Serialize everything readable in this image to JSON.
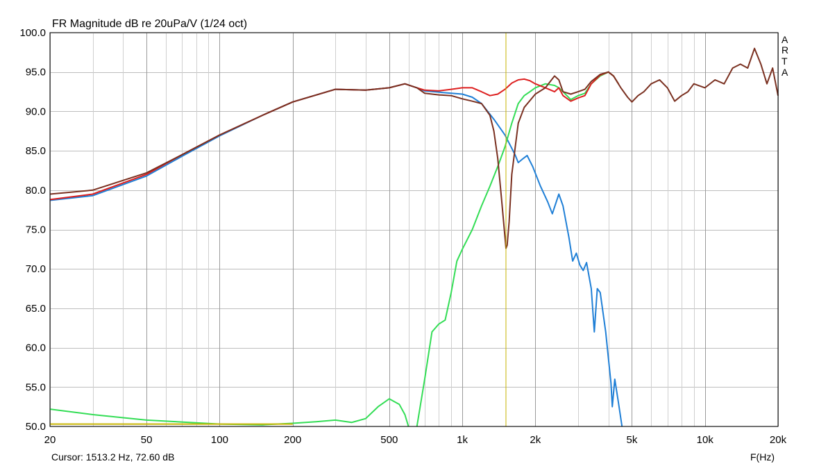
{
  "chart_data": {
    "type": "line",
    "title": "FR Magnitude dB re 20uPa/V (1/24 oct)",
    "watermark_letters": [
      "A",
      "R",
      "T",
      "A"
    ],
    "xlabel": "F(Hz)",
    "xscale": "log",
    "xlim": [
      20,
      20000
    ],
    "ylim": [
      50,
      100
    ],
    "grid": true,
    "y_ticks": [
      "100.0",
      "95.0",
      "90.0",
      "85.0",
      "80.0",
      "75.0",
      "70.0",
      "65.0",
      "60.0",
      "55.0",
      "50.0"
    ],
    "x_tick_labels": [
      {
        "f": 20,
        "label": "20"
      },
      {
        "f": 50,
        "label": "50"
      },
      {
        "f": 100,
        "label": "100"
      },
      {
        "f": 200,
        "label": "200"
      },
      {
        "f": 500,
        "label": "500"
      },
      {
        "f": 1000,
        "label": "1k"
      },
      {
        "f": 2000,
        "label": "2k"
      },
      {
        "f": 5000,
        "label": "5k"
      },
      {
        "f": 10000,
        "label": "10k"
      },
      {
        "f": 20000,
        "label": "20k"
      }
    ],
    "cursor": {
      "freq": 1513.2,
      "label": "Cursor: 1513.2 Hz, 72.60 dB",
      "color": "#c8b400"
    },
    "series": [
      {
        "color": "#1f7fd6",
        "points": [
          [
            20,
            78.7
          ],
          [
            30,
            79.3
          ],
          [
            50,
            81.8
          ],
          [
            70,
            84.3
          ],
          [
            100,
            86.9
          ],
          [
            150,
            89.5
          ],
          [
            200,
            91.2
          ],
          [
            300,
            92.8
          ],
          [
            400,
            92.7
          ],
          [
            500,
            93.0
          ],
          [
            580,
            93.5
          ],
          [
            650,
            93.0
          ],
          [
            700,
            92.6
          ],
          [
            900,
            92.3
          ],
          [
            1000,
            92.2
          ],
          [
            1100,
            91.8
          ],
          [
            1200,
            91.0
          ],
          [
            1350,
            89.0
          ],
          [
            1500,
            87.0
          ],
          [
            1650,
            84.5
          ],
          [
            1700,
            83.5
          ],
          [
            1780,
            84.0
          ],
          [
            1850,
            84.4
          ],
          [
            1950,
            83.0
          ],
          [
            2100,
            80.5
          ],
          [
            2250,
            78.5
          ],
          [
            2350,
            77.0
          ],
          [
            2500,
            79.5
          ],
          [
            2600,
            78.0
          ],
          [
            2750,
            74.0
          ],
          [
            2850,
            71.0
          ],
          [
            2950,
            72.0
          ],
          [
            3050,
            70.5
          ],
          [
            3150,
            69.8
          ],
          [
            3250,
            70.8
          ],
          [
            3400,
            67.5
          ],
          [
            3500,
            62.0
          ],
          [
            3600,
            67.5
          ],
          [
            3700,
            67.0
          ],
          [
            3900,
            62.0
          ],
          [
            4100,
            55.5
          ],
          [
            4150,
            52.5
          ],
          [
            4250,
            56.0
          ],
          [
            4400,
            53.0
          ],
          [
            4550,
            50.0
          ]
        ]
      },
      {
        "color": "#33dd55",
        "points": [
          [
            20,
            52.2
          ],
          [
            30,
            51.5
          ],
          [
            50,
            50.8
          ],
          [
            100,
            50.3
          ],
          [
            150,
            50.2
          ],
          [
            200,
            50.4
          ],
          [
            250,
            50.6
          ],
          [
            300,
            50.8
          ],
          [
            350,
            50.5
          ],
          [
            400,
            51.0
          ],
          [
            450,
            52.5
          ],
          [
            500,
            53.5
          ],
          [
            550,
            52.8
          ],
          [
            580,
            51.5
          ],
          [
            600,
            50.0
          ]
        ]
      },
      {
        "color": "#33dd55",
        "points": [
          [
            650,
            50.0
          ],
          [
            700,
            56.0
          ],
          [
            750,
            62.0
          ],
          [
            800,
            63.0
          ],
          [
            850,
            63.5
          ],
          [
            900,
            67.0
          ],
          [
            950,
            71.0
          ],
          [
            1000,
            72.5
          ],
          [
            1100,
            75.0
          ],
          [
            1200,
            78.0
          ],
          [
            1300,
            80.5
          ],
          [
            1400,
            83.0
          ],
          [
            1500,
            85.5
          ],
          [
            1600,
            88.5
          ],
          [
            1700,
            91.0
          ],
          [
            1800,
            92.0
          ],
          [
            1900,
            92.5
          ],
          [
            2000,
            93.0
          ],
          [
            2200,
            93.5
          ],
          [
            2400,
            93.3
          ],
          [
            2500,
            93.0
          ],
          [
            2600,
            92.5
          ],
          [
            2800,
            91.5
          ],
          [
            3000,
            92.0
          ],
          [
            3200,
            92.3
          ],
          [
            3400,
            93.5
          ],
          [
            3700,
            94.5
          ],
          [
            4000,
            95.0
          ],
          [
            4200,
            94.5
          ],
          [
            4400,
            93.5
          ]
        ]
      },
      {
        "color": "#dd1f1f",
        "points": [
          [
            20,
            78.8
          ],
          [
            30,
            79.5
          ],
          [
            50,
            82.0
          ],
          [
            70,
            84.5
          ],
          [
            100,
            87.0
          ],
          [
            150,
            89.5
          ],
          [
            200,
            91.2
          ],
          [
            300,
            92.8
          ],
          [
            400,
            92.7
          ],
          [
            500,
            93.0
          ],
          [
            580,
            93.5
          ],
          [
            650,
            93.0
          ],
          [
            700,
            92.7
          ],
          [
            800,
            92.6
          ],
          [
            900,
            92.8
          ],
          [
            1000,
            93.0
          ],
          [
            1100,
            93.0
          ],
          [
            1200,
            92.5
          ],
          [
            1300,
            92.0
          ],
          [
            1400,
            92.2
          ],
          [
            1500,
            92.8
          ],
          [
            1600,
            93.6
          ],
          [
            1700,
            94.0
          ],
          [
            1800,
            94.1
          ],
          [
            1900,
            93.9
          ],
          [
            2000,
            93.5
          ],
          [
            2200,
            93.0
          ],
          [
            2400,
            92.5
          ],
          [
            2500,
            93.0
          ],
          [
            2600,
            92.0
          ],
          [
            2800,
            91.3
          ],
          [
            3000,
            91.7
          ],
          [
            3200,
            92.0
          ],
          [
            3400,
            93.5
          ],
          [
            3700,
            94.6
          ],
          [
            4000,
            95.0
          ],
          [
            4200,
            94.5
          ],
          [
            4400,
            93.5
          ]
        ]
      },
      {
        "color": "#7a3020",
        "points": [
          [
            20,
            79.5
          ],
          [
            30,
            80.0
          ],
          [
            50,
            82.2
          ],
          [
            70,
            84.5
          ],
          [
            100,
            87.0
          ],
          [
            150,
            89.5
          ],
          [
            200,
            91.2
          ],
          [
            300,
            92.8
          ],
          [
            400,
            92.7
          ],
          [
            500,
            93.0
          ],
          [
            580,
            93.5
          ],
          [
            650,
            93.0
          ],
          [
            700,
            92.3
          ],
          [
            800,
            92.1
          ],
          [
            900,
            92.0
          ],
          [
            1000,
            91.6
          ],
          [
            1100,
            91.3
          ],
          [
            1200,
            91.0
          ],
          [
            1300,
            89.5
          ],
          [
            1350,
            87.5
          ],
          [
            1400,
            84.0
          ],
          [
            1450,
            79.0
          ],
          [
            1500,
            74.0
          ],
          [
            1513,
            72.6
          ],
          [
            1530,
            73.0
          ],
          [
            1560,
            76.0
          ],
          [
            1600,
            82.0
          ],
          [
            1700,
            88.5
          ],
          [
            1800,
            90.5
          ],
          [
            2000,
            92.2
          ],
          [
            2200,
            93.0
          ],
          [
            2400,
            94.5
          ],
          [
            2500,
            94.0
          ],
          [
            2600,
            92.5
          ],
          [
            2800,
            92.2
          ],
          [
            3000,
            92.5
          ],
          [
            3200,
            92.8
          ],
          [
            3400,
            93.8
          ],
          [
            3700,
            94.7
          ],
          [
            4000,
            95.0
          ],
          [
            4200,
            94.5
          ],
          [
            4500,
            93.0
          ],
          [
            4800,
            91.8
          ],
          [
            5000,
            91.2
          ],
          [
            5300,
            92.0
          ],
          [
            5600,
            92.5
          ],
          [
            6000,
            93.5
          ],
          [
            6500,
            94.0
          ],
          [
            7000,
            93.0
          ],
          [
            7500,
            91.3
          ],
          [
            8000,
            92.0
          ],
          [
            8500,
            92.5
          ],
          [
            9000,
            93.5
          ],
          [
            10000,
            93.0
          ],
          [
            11000,
            94.0
          ],
          [
            12000,
            93.5
          ],
          [
            13000,
            95.5
          ],
          [
            14000,
            96.0
          ],
          [
            15000,
            95.5
          ],
          [
            16000,
            98.0
          ],
          [
            17000,
            96.0
          ],
          [
            18000,
            93.5
          ],
          [
            19000,
            95.5
          ],
          [
            20000,
            92.0
          ]
        ]
      },
      {
        "color": "#c8b400",
        "points": [
          [
            20,
            50.3
          ],
          [
            200,
            50.3
          ]
        ]
      }
    ]
  }
}
